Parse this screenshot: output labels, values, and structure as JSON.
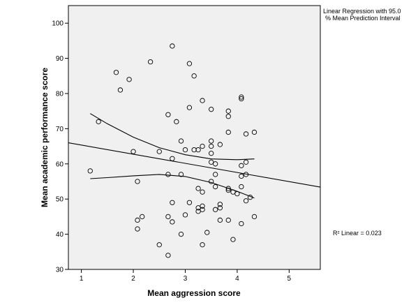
{
  "chart_data": {
    "type": "scatter",
    "xlabel": "Mean aggression score",
    "ylabel": "Mean academic performance score",
    "xlim": [
      0.75,
      5.6
    ],
    "ylim": [
      30,
      105
    ],
    "x_ticks": [
      1,
      2,
      3,
      4,
      5
    ],
    "y_ticks": [
      30,
      40,
      50,
      60,
      70,
      80,
      90,
      100
    ],
    "x_tick_labels": [
      "1",
      "2",
      "3",
      "4",
      "5"
    ],
    "y_tick_labels": [
      "30",
      "40",
      "50",
      "60",
      "70",
      "80",
      "90",
      "100"
    ],
    "legend_line1": "Linear Regression with 95.0",
    "legend_line2": "% Mean Prediction Interval",
    "r2_text": "R² Linear = 0.023",
    "plot_background": "#f0f0f0",
    "grid": false,
    "points": [
      [
        1.17,
        58
      ],
      [
        1.33,
        72
      ],
      [
        1.67,
        86
      ],
      [
        1.75,
        81
      ],
      [
        1.92,
        84
      ],
      [
        2.0,
        63.5
      ],
      [
        2.08,
        55
      ],
      [
        2.08,
        44
      ],
      [
        2.08,
        41.5
      ],
      [
        2.17,
        45
      ],
      [
        2.33,
        89
      ],
      [
        2.5,
        63.5
      ],
      [
        2.5,
        37
      ],
      [
        2.67,
        74
      ],
      [
        2.67,
        57
      ],
      [
        2.67,
        45
      ],
      [
        2.67,
        34
      ],
      [
        2.75,
        93.5
      ],
      [
        2.75,
        61.5
      ],
      [
        2.75,
        49
      ],
      [
        2.75,
        43.5
      ],
      [
        2.83,
        72
      ],
      [
        2.92,
        66.5
      ],
      [
        2.92,
        57
      ],
      [
        2.92,
        40
      ],
      [
        3.0,
        64
      ],
      [
        3.0,
        45.5
      ],
      [
        3.08,
        88.5
      ],
      [
        3.08,
        76
      ],
      [
        3.08,
        49
      ],
      [
        3.17,
        85
      ],
      [
        3.17,
        64
      ],
      [
        3.25,
        64
      ],
      [
        3.25,
        53
      ],
      [
        3.25,
        47.5
      ],
      [
        3.25,
        46.5
      ],
      [
        3.33,
        78
      ],
      [
        3.33,
        65
      ],
      [
        3.33,
        52
      ],
      [
        3.33,
        48
      ],
      [
        3.33,
        47
      ],
      [
        3.33,
        37
      ],
      [
        3.42,
        40.5
      ],
      [
        3.5,
        75.5
      ],
      [
        3.5,
        66.5
      ],
      [
        3.5,
        65
      ],
      [
        3.5,
        63
      ],
      [
        3.5,
        60.5
      ],
      [
        3.5,
        55
      ],
      [
        3.58,
        60
      ],
      [
        3.58,
        57
      ],
      [
        3.58,
        53.5
      ],
      [
        3.58,
        47
      ],
      [
        3.67,
        65.5
      ],
      [
        3.67,
        48.5
      ],
      [
        3.67,
        47.5
      ],
      [
        3.67,
        44
      ],
      [
        3.83,
        75
      ],
      [
        3.83,
        73.5
      ],
      [
        3.83,
        69
      ],
      [
        3.83,
        53
      ],
      [
        3.83,
        52.5
      ],
      [
        3.83,
        44
      ],
      [
        3.92,
        52
      ],
      [
        3.92,
        38.5
      ],
      [
        4.0,
        51.5
      ],
      [
        4.08,
        79
      ],
      [
        4.08,
        78.5
      ],
      [
        4.08,
        59.5
      ],
      [
        4.08,
        56.5
      ],
      [
        4.08,
        53.5
      ],
      [
        4.08,
        43
      ],
      [
        4.17,
        68.5
      ],
      [
        4.17,
        60.5
      ],
      [
        4.17,
        57
      ],
      [
        4.17,
        49.5
      ],
      [
        4.25,
        50.5
      ],
      [
        4.33,
        69
      ],
      [
        4.33,
        45
      ]
    ],
    "fit_line": [
      [
        0.75,
        66
      ],
      [
        5.6,
        53.4
      ]
    ],
    "ci_upper": [
      [
        1.17,
        74.3
      ],
      [
        1.5,
        71.4
      ],
      [
        2.0,
        67.6
      ],
      [
        2.5,
        64.6
      ],
      [
        3.0,
        62.6
      ],
      [
        3.5,
        61.4
      ],
      [
        4.0,
        61.2
      ],
      [
        4.33,
        61.4
      ]
    ],
    "ci_lower": [
      [
        1.17,
        55.8
      ],
      [
        1.5,
        56.1
      ],
      [
        2.0,
        56.6
      ],
      [
        2.5,
        57.0
      ],
      [
        3.0,
        56.4
      ],
      [
        3.5,
        54.7
      ],
      [
        4.0,
        52.2
      ],
      [
        4.33,
        50.3
      ]
    ]
  }
}
